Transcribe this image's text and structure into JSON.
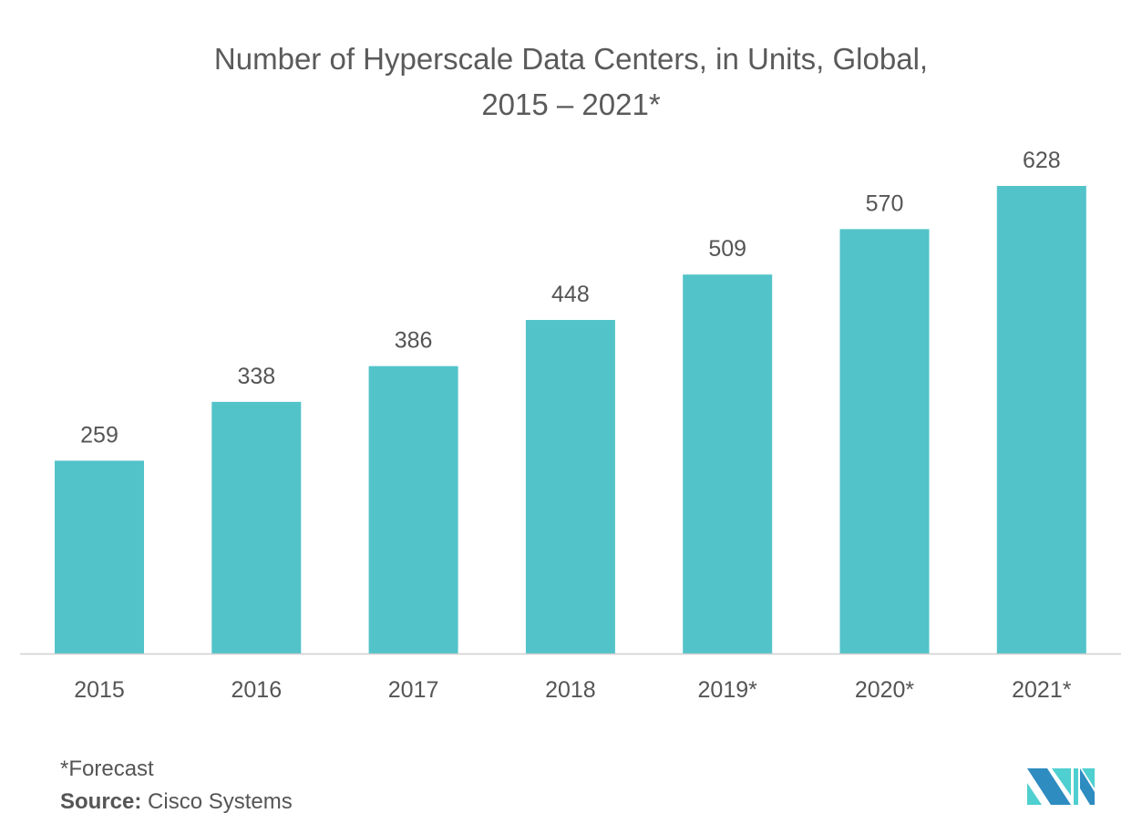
{
  "chart_data": {
    "type": "bar",
    "title": "Number of Hyperscale Data Centers, in Units, Global,",
    "subtitle": "2015 – 2021*",
    "categories": [
      "2015",
      "2016",
      "2017",
      "2018",
      "2019*",
      "2020*",
      "2021*"
    ],
    "values": [
      259,
      338,
      386,
      448,
      509,
      570,
      628
    ],
    "xlabel": "",
    "ylabel": "",
    "ylim": [
      0,
      628
    ],
    "grid": false,
    "bar_color": "#52C3C9"
  },
  "footer": {
    "note": "*Forecast",
    "source_label": "Source:",
    "source_value": " Cisco Systems"
  },
  "logo": {
    "text": "MI",
    "colors": [
      "#2E8CC0",
      "#4FCFD0"
    ]
  }
}
